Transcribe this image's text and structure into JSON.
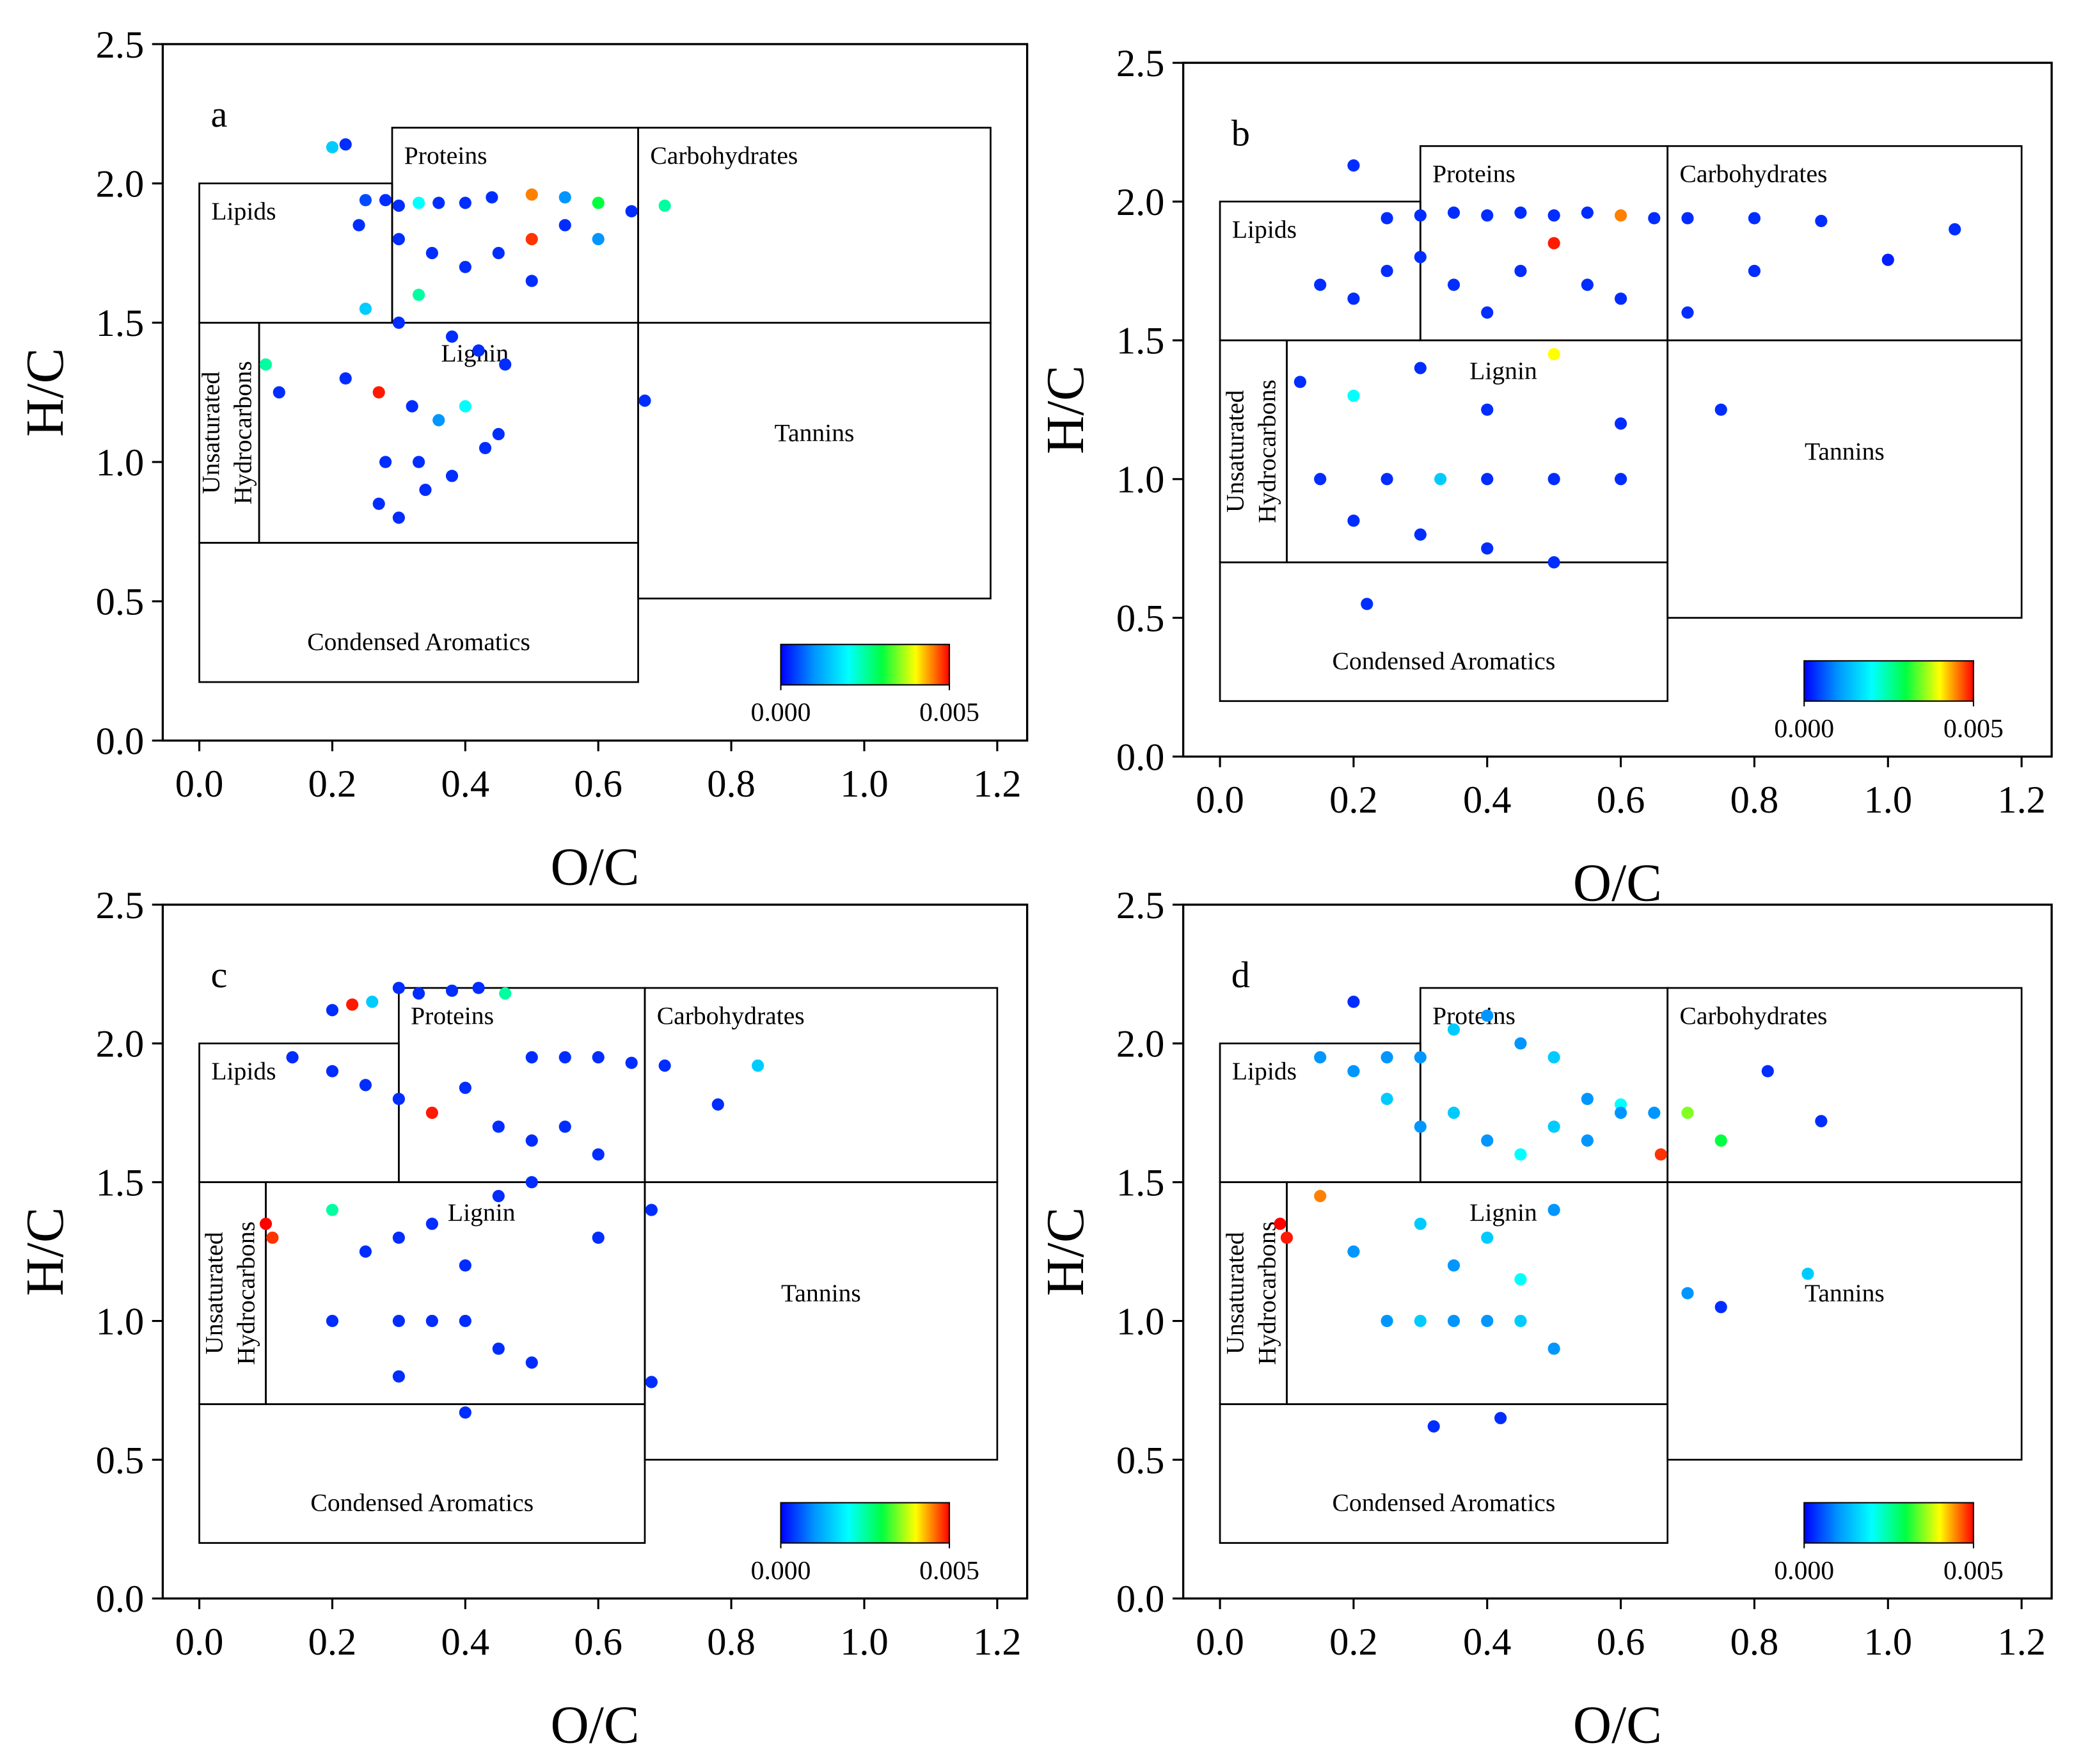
{
  "chart_data": [
    {
      "type": "scatter",
      "title": "a",
      "xlabel": "O/C",
      "ylabel": "H/C",
      "xlim": [
        -0.055,
        1.245
      ],
      "ylim": [
        0,
        2.5
      ],
      "xticks": [
        {
          "value": 0,
          "label": "0.0"
        },
        0.2,
        0.4,
        0.6,
        0.8,
        {
          "value": 1,
          "label": "1.0"
        },
        1.2
      ],
      "yticks": [
        {
          "value": 0,
          "label": "0.0"
        },
        0.5,
        {
          "value": 1,
          "label": "1.0"
        },
        1.5,
        {
          "value": 2,
          "label": "2.0"
        },
        2.5
      ],
      "x": [
        0.22,
        0.25,
        0.28,
        0.3,
        0.33,
        0.36,
        0.4,
        0.44,
        0.5,
        0.55,
        0.6,
        0.65,
        0.7,
        0.2,
        0.24,
        0.3,
        0.35,
        0.4,
        0.45,
        0.5,
        0.55,
        0.6,
        0.25,
        0.3,
        0.33,
        0.38,
        0.42,
        0.46,
        0.5,
        0.22,
        0.27,
        0.32,
        0.36,
        0.4,
        0.45,
        0.28,
        0.33,
        0.38,
        0.43,
        0.27,
        0.3,
        0.34,
        0.1,
        0.12,
        0.67
      ],
      "values": [
        2.14,
        1.94,
        1.94,
        1.92,
        1.93,
        1.93,
        1.93,
        1.95,
        1.96,
        1.95,
        1.93,
        1.9,
        1.92,
        2.13,
        1.85,
        1.8,
        1.75,
        1.7,
        1.75,
        1.8,
        1.85,
        1.8,
        1.55,
        1.5,
        1.6,
        1.45,
        1.4,
        1.35,
        1.65,
        1.3,
        1.25,
        1.2,
        1.15,
        1.2,
        1.1,
        1.0,
        1.0,
        0.95,
        1.05,
        0.85,
        0.8,
        0.9,
        1.35,
        1.25,
        1.22
      ],
      "c": [
        0.0003,
        0.0005,
        0.0003,
        0.0003,
        0.002,
        0.0003,
        0.0003,
        0.0003,
        0.0045,
        0.001,
        0.003,
        0.0003,
        0.0025,
        0.0015,
        0.0003,
        0.0003,
        0.0003,
        0.0003,
        0.0003,
        0.0048,
        0.0003,
        0.001,
        0.0015,
        0.0003,
        0.0025,
        0.0003,
        0.0003,
        0.0003,
        0.0003,
        0.0003,
        0.0049,
        0.0003,
        0.001,
        0.002,
        0.0003,
        0.0003,
        0.0003,
        0.0003,
        0.0003,
        0.0003,
        0.0003,
        0.0003,
        0.0025,
        0.0003,
        0.0003
      ],
      "colorbar": {
        "lim": [
          0,
          0.005
        ],
        "colormap": [
          "#0000ff",
          "#0096ff",
          "#00ffff",
          "#00ff40",
          "#ffff00",
          "#ff0000"
        ],
        "ticks": [
          {
            "value": 0,
            "label": "0.000"
          },
          {
            "value": 0.005,
            "label": "0.005"
          }
        ]
      },
      "regions": [
        {
          "lines": [
            "Lipids"
          ],
          "x": [
            0,
            0.29
          ],
          "y": [
            1.5,
            2.0
          ]
        },
        {
          "lines": [
            "Proteins"
          ],
          "x": [
            0.29,
            0.66
          ],
          "y": [
            1.5,
            2.2
          ]
        },
        {
          "lines": [
            "Carbohydrates"
          ],
          "x": [
            0.66,
            1.19
          ],
          "y": [
            1.5,
            2.2
          ]
        },
        {
          "lines": [
            "Unsaturated",
            "Hydrocarbons"
          ],
          "x": [
            0,
            0.09
          ],
          "y": [
            0.71,
            1.5
          ]
        },
        {
          "lines": [
            "Lignin"
          ],
          "x": [
            0.09,
            0.66
          ],
          "y": [
            0.71,
            1.5
          ]
        },
        {
          "lines": [
            "Tannins"
          ],
          "x": [
            0.66,
            1.19
          ],
          "y": [
            0.51,
            1.5
          ]
        },
        {
          "lines": [
            "Condensed Aromatics"
          ],
          "x": [
            0,
            0.66
          ],
          "y": [
            0.21,
            0.71
          ]
        }
      ]
    },
    {
      "type": "scatter",
      "title": "b",
      "xlabel": "O/C",
      "ylabel": "H/C",
      "xlim": [
        -0.055,
        1.245
      ],
      "ylim": [
        0,
        2.5
      ],
      "xticks": [
        {
          "value": 0,
          "label": "0.0"
        },
        0.2,
        0.4,
        0.6,
        0.8,
        {
          "value": 1,
          "label": "1.0"
        },
        1.2
      ],
      "yticks": [
        {
          "value": 0,
          "label": "0.0"
        },
        0.5,
        {
          "value": 1,
          "label": "1.0"
        },
        1.5,
        {
          "value": 2,
          "label": "2.0"
        },
        2.5
      ],
      "x": [
        0.2,
        0.25,
        0.3,
        0.35,
        0.4,
        0.45,
        0.5,
        0.55,
        0.6,
        0.65,
        0.7,
        0.8,
        0.9,
        1.0,
        1.1,
        0.15,
        0.2,
        0.25,
        0.3,
        0.35,
        0.4,
        0.45,
        0.5,
        0.55,
        0.6,
        0.7,
        0.8,
        0.12,
        0.2,
        0.3,
        0.4,
        0.5,
        0.6,
        0.75,
        0.15,
        0.25,
        0.33,
        0.4,
        0.5,
        0.6,
        0.2,
        0.3,
        0.4,
        0.5,
        0.22
      ],
      "values": [
        2.13,
        1.94,
        1.95,
        1.96,
        1.95,
        1.96,
        1.95,
        1.96,
        1.95,
        1.94,
        1.94,
        1.94,
        1.93,
        1.79,
        1.9,
        1.7,
        1.65,
        1.75,
        1.8,
        1.7,
        1.6,
        1.75,
        1.85,
        1.7,
        1.65,
        1.6,
        1.75,
        1.35,
        1.3,
        1.4,
        1.25,
        1.45,
        1.2,
        1.25,
        1.0,
        1.0,
        1.0,
        1.0,
        1.0,
        1.0,
        0.85,
        0.8,
        0.75,
        0.7,
        0.55
      ],
      "c": [
        0.0003,
        0.0003,
        0.0003,
        0.0003,
        0.0003,
        0.0003,
        0.0003,
        0.0003,
        0.0045,
        0.0003,
        0.0003,
        0.0003,
        0.0003,
        0.0002,
        0.0003,
        0.0003,
        0.0003,
        0.0003,
        0.0003,
        0.0003,
        0.0003,
        0.0003,
        0.0049,
        0.0003,
        0.0003,
        0.0003,
        0.0003,
        0.0003,
        0.002,
        0.0003,
        0.0003,
        0.004,
        0.0003,
        0.0003,
        0.0003,
        0.0003,
        0.0015,
        0.0003,
        0.0003,
        0.0003,
        0.0003,
        0.0003,
        0.0003,
        0.0003,
        0.0003
      ],
      "colorbar": {
        "lim": [
          0,
          0.005
        ],
        "colormap": [
          "#0000ff",
          "#0096ff",
          "#00ffff",
          "#00ff40",
          "#ffff00",
          "#ff0000"
        ],
        "ticks": [
          {
            "value": 0,
            "label": "0.000"
          },
          {
            "value": 0.005,
            "label": "0.005"
          }
        ]
      },
      "regions": [
        {
          "lines": [
            "Lipids"
          ],
          "x": [
            0,
            0.3
          ],
          "y": [
            1.5,
            2.0
          ]
        },
        {
          "lines": [
            "Proteins"
          ],
          "x": [
            0.3,
            0.67
          ],
          "y": [
            1.5,
            2.2
          ]
        },
        {
          "lines": [
            "Carbohydrates"
          ],
          "x": [
            0.67,
            1.2
          ],
          "y": [
            1.5,
            2.2
          ]
        },
        {
          "lines": [
            "Unsaturated",
            "Hydrocarbons"
          ],
          "x": [
            0,
            0.1
          ],
          "y": [
            0.7,
            1.5
          ]
        },
        {
          "lines": [
            "Lignin"
          ],
          "x": [
            0.1,
            0.67
          ],
          "y": [
            0.7,
            1.5
          ]
        },
        {
          "lines": [
            "Tannins"
          ],
          "x": [
            0.67,
            1.2
          ],
          "y": [
            0.5,
            1.5
          ]
        },
        {
          "lines": [
            "Condensed Aromatics"
          ],
          "x": [
            0,
            0.67
          ],
          "y": [
            0.2,
            0.7
          ]
        }
      ]
    },
    {
      "type": "scatter",
      "title": "c",
      "xlabel": "O/C",
      "ylabel": "H/C",
      "xlim": [
        -0.055,
        1.245
      ],
      "ylim": [
        0,
        2.5
      ],
      "xticks": [
        {
          "value": 0,
          "label": "0.0"
        },
        0.2,
        0.4,
        0.6,
        0.8,
        {
          "value": 1,
          "label": "1.0"
        },
        1.2
      ],
      "yticks": [
        {
          "value": 0,
          "label": "0.0"
        },
        0.5,
        {
          "value": 1,
          "label": "1.0"
        },
        1.5,
        {
          "value": 2,
          "label": "2.0"
        },
        2.5
      ],
      "x": [
        0.2,
        0.23,
        0.26,
        0.3,
        0.33,
        0.38,
        0.42,
        0.46,
        0.5,
        0.55,
        0.6,
        0.65,
        0.7,
        0.78,
        0.84,
        0.14,
        0.2,
        0.25,
        0.3,
        0.35,
        0.4,
        0.45,
        0.5,
        0.55,
        0.6,
        0.1,
        0.11,
        0.2,
        0.25,
        0.3,
        0.35,
        0.4,
        0.45,
        0.5,
        0.6,
        0.68,
        0.2,
        0.3,
        0.35,
        0.4,
        0.45,
        0.5,
        0.3,
        0.4,
        0.68
      ],
      "values": [
        2.12,
        2.14,
        2.15,
        2.2,
        2.18,
        2.19,
        2.2,
        2.18,
        1.95,
        1.95,
        1.95,
        1.93,
        1.92,
        1.78,
        1.92,
        1.95,
        1.9,
        1.85,
        1.8,
        1.75,
        1.84,
        1.7,
        1.65,
        1.7,
        1.6,
        1.35,
        1.3,
        1.4,
        1.25,
        1.3,
        1.35,
        1.2,
        1.45,
        1.5,
        1.3,
        1.4,
        1.0,
        1.0,
        1.0,
        1.0,
        0.9,
        0.85,
        0.8,
        0.67,
        0.78
      ],
      "c": [
        0.0003,
        0.0049,
        0.0015,
        0.0003,
        0.0003,
        0.0003,
        0.0003,
        0.0025,
        0.0003,
        0.0003,
        0.0003,
        0.0003,
        0.0003,
        0.0003,
        0.0015,
        0.0003,
        0.0003,
        0.0003,
        0.0003,
        0.0049,
        0.0003,
        0.0003,
        0.0003,
        0.0003,
        0.0003,
        0.005,
        0.0048,
        0.0025,
        0.0003,
        0.0003,
        0.0003,
        0.0003,
        0.0003,
        0.0003,
        0.0003,
        0.0003,
        0.0003,
        0.0003,
        0.0003,
        0.0003,
        0.0003,
        0.0003,
        0.0003,
        0.0003,
        0.0003
      ],
      "colorbar": {
        "lim": [
          0,
          0.005
        ],
        "colormap": [
          "#0000ff",
          "#0096ff",
          "#00ffff",
          "#00ff40",
          "#ffff00",
          "#ff0000"
        ],
        "ticks": [
          {
            "value": 0,
            "label": "0.000"
          },
          {
            "value": 0.005,
            "label": "0.005"
          }
        ]
      },
      "regions": [
        {
          "lines": [
            "Lipids"
          ],
          "x": [
            0,
            0.3
          ],
          "y": [
            1.5,
            2.0
          ]
        },
        {
          "lines": [
            "Proteins"
          ],
          "x": [
            0.3,
            0.67
          ],
          "y": [
            1.5,
            2.2
          ]
        },
        {
          "lines": [
            "Carbohydrates"
          ],
          "x": [
            0.67,
            1.2
          ],
          "y": [
            1.5,
            2.2
          ]
        },
        {
          "lines": [
            "Unsaturated",
            "Hydrocarbons"
          ],
          "x": [
            0,
            0.1
          ],
          "y": [
            0.7,
            1.5
          ]
        },
        {
          "lines": [
            "Lignin"
          ],
          "x": [
            0.1,
            0.67
          ],
          "y": [
            0.7,
            1.5
          ]
        },
        {
          "lines": [
            "Tannins"
          ],
          "x": [
            0.67,
            1.2
          ],
          "y": [
            0.5,
            1.5
          ]
        },
        {
          "lines": [
            "Condensed Aromatics"
          ],
          "x": [
            0,
            0.67
          ],
          "y": [
            0.2,
            0.7
          ]
        }
      ]
    },
    {
      "type": "scatter",
      "title": "d",
      "xlabel": "O/C",
      "ylabel": "H/C",
      "xlim": [
        -0.055,
        1.245
      ],
      "ylim": [
        0,
        2.5
      ],
      "xticks": [
        {
          "value": 0,
          "label": "0.0"
        },
        0.2,
        0.4,
        0.6,
        0.8,
        {
          "value": 1,
          "label": "1.0"
        },
        1.2
      ],
      "yticks": [
        {
          "value": 0,
          "label": "0.0"
        },
        0.5,
        {
          "value": 1,
          "label": "1.0"
        },
        1.5,
        {
          "value": 2,
          "label": "2.0"
        },
        2.5
      ],
      "x": [
        0.2,
        0.25,
        0.3,
        0.35,
        0.4,
        0.45,
        0.5,
        0.55,
        0.6,
        0.65,
        0.7,
        0.75,
        0.82,
        0.9,
        0.15,
        0.2,
        0.25,
        0.3,
        0.35,
        0.4,
        0.45,
        0.5,
        0.55,
        0.6,
        0.66,
        0.09,
        0.1,
        0.15,
        0.2,
        0.3,
        0.35,
        0.4,
        0.45,
        0.5,
        0.7,
        0.75,
        0.88,
        0.25,
        0.3,
        0.35,
        0.4,
        0.45,
        0.5,
        0.32,
        0.42
      ],
      "values": [
        2.15,
        1.95,
        1.95,
        2.05,
        2.1,
        2.0,
        1.95,
        1.8,
        1.78,
        1.75,
        1.75,
        1.65,
        1.9,
        1.72,
        1.95,
        1.9,
        1.8,
        1.7,
        1.75,
        1.65,
        1.6,
        1.7,
        1.65,
        1.75,
        1.6,
        1.35,
        1.3,
        1.45,
        1.25,
        1.35,
        1.2,
        1.3,
        1.15,
        1.4,
        1.1,
        1.05,
        1.17,
        1.0,
        1.0,
        1.0,
        1.0,
        1.0,
        0.9,
        0.62,
        0.65
      ],
      "c": [
        0.0003,
        0.001,
        0.001,
        0.0015,
        0.001,
        0.001,
        0.0015,
        0.001,
        0.002,
        0.001,
        0.0035,
        0.003,
        0.0003,
        0.0003,
        0.001,
        0.001,
        0.0015,
        0.001,
        0.0015,
        0.001,
        0.002,
        0.0015,
        0.001,
        0.001,
        0.0048,
        0.005,
        0.0049,
        0.0045,
        0.001,
        0.0015,
        0.001,
        0.0015,
        0.002,
        0.001,
        0.001,
        0.0003,
        0.0015,
        0.001,
        0.0015,
        0.001,
        0.001,
        0.0015,
        0.001,
        0.0003,
        0.0003
      ],
      "colorbar": {
        "lim": [
          0,
          0.005
        ],
        "colormap": [
          "#0000ff",
          "#0096ff",
          "#00ffff",
          "#00ff40",
          "#ffff00",
          "#ff0000"
        ],
        "ticks": [
          {
            "value": 0,
            "label": "0.000"
          },
          {
            "value": 0.005,
            "label": "0.005"
          }
        ]
      },
      "regions": [
        {
          "lines": [
            "Lipids"
          ],
          "x": [
            0,
            0.3
          ],
          "y": [
            1.5,
            2.0
          ]
        },
        {
          "lines": [
            "Proteins"
          ],
          "x": [
            0.3,
            0.67
          ],
          "y": [
            1.5,
            2.2
          ]
        },
        {
          "lines": [
            "Carbohydrates"
          ],
          "x": [
            0.67,
            1.2
          ],
          "y": [
            1.5,
            2.2
          ]
        },
        {
          "lines": [
            "Unsaturated",
            "Hydrocarbons"
          ],
          "x": [
            0,
            0.1
          ],
          "y": [
            0.7,
            1.5
          ]
        },
        {
          "lines": [
            "Lignin"
          ],
          "x": [
            0.1,
            0.67
          ],
          "y": [
            0.7,
            1.5
          ]
        },
        {
          "lines": [
            "Tannins"
          ],
          "x": [
            0.67,
            1.2
          ],
          "y": [
            0.5,
            1.5
          ]
        },
        {
          "lines": [
            "Condensed Aromatics"
          ],
          "x": [
            0,
            0.67
          ],
          "y": [
            0.2,
            0.7
          ]
        }
      ]
    }
  ]
}
